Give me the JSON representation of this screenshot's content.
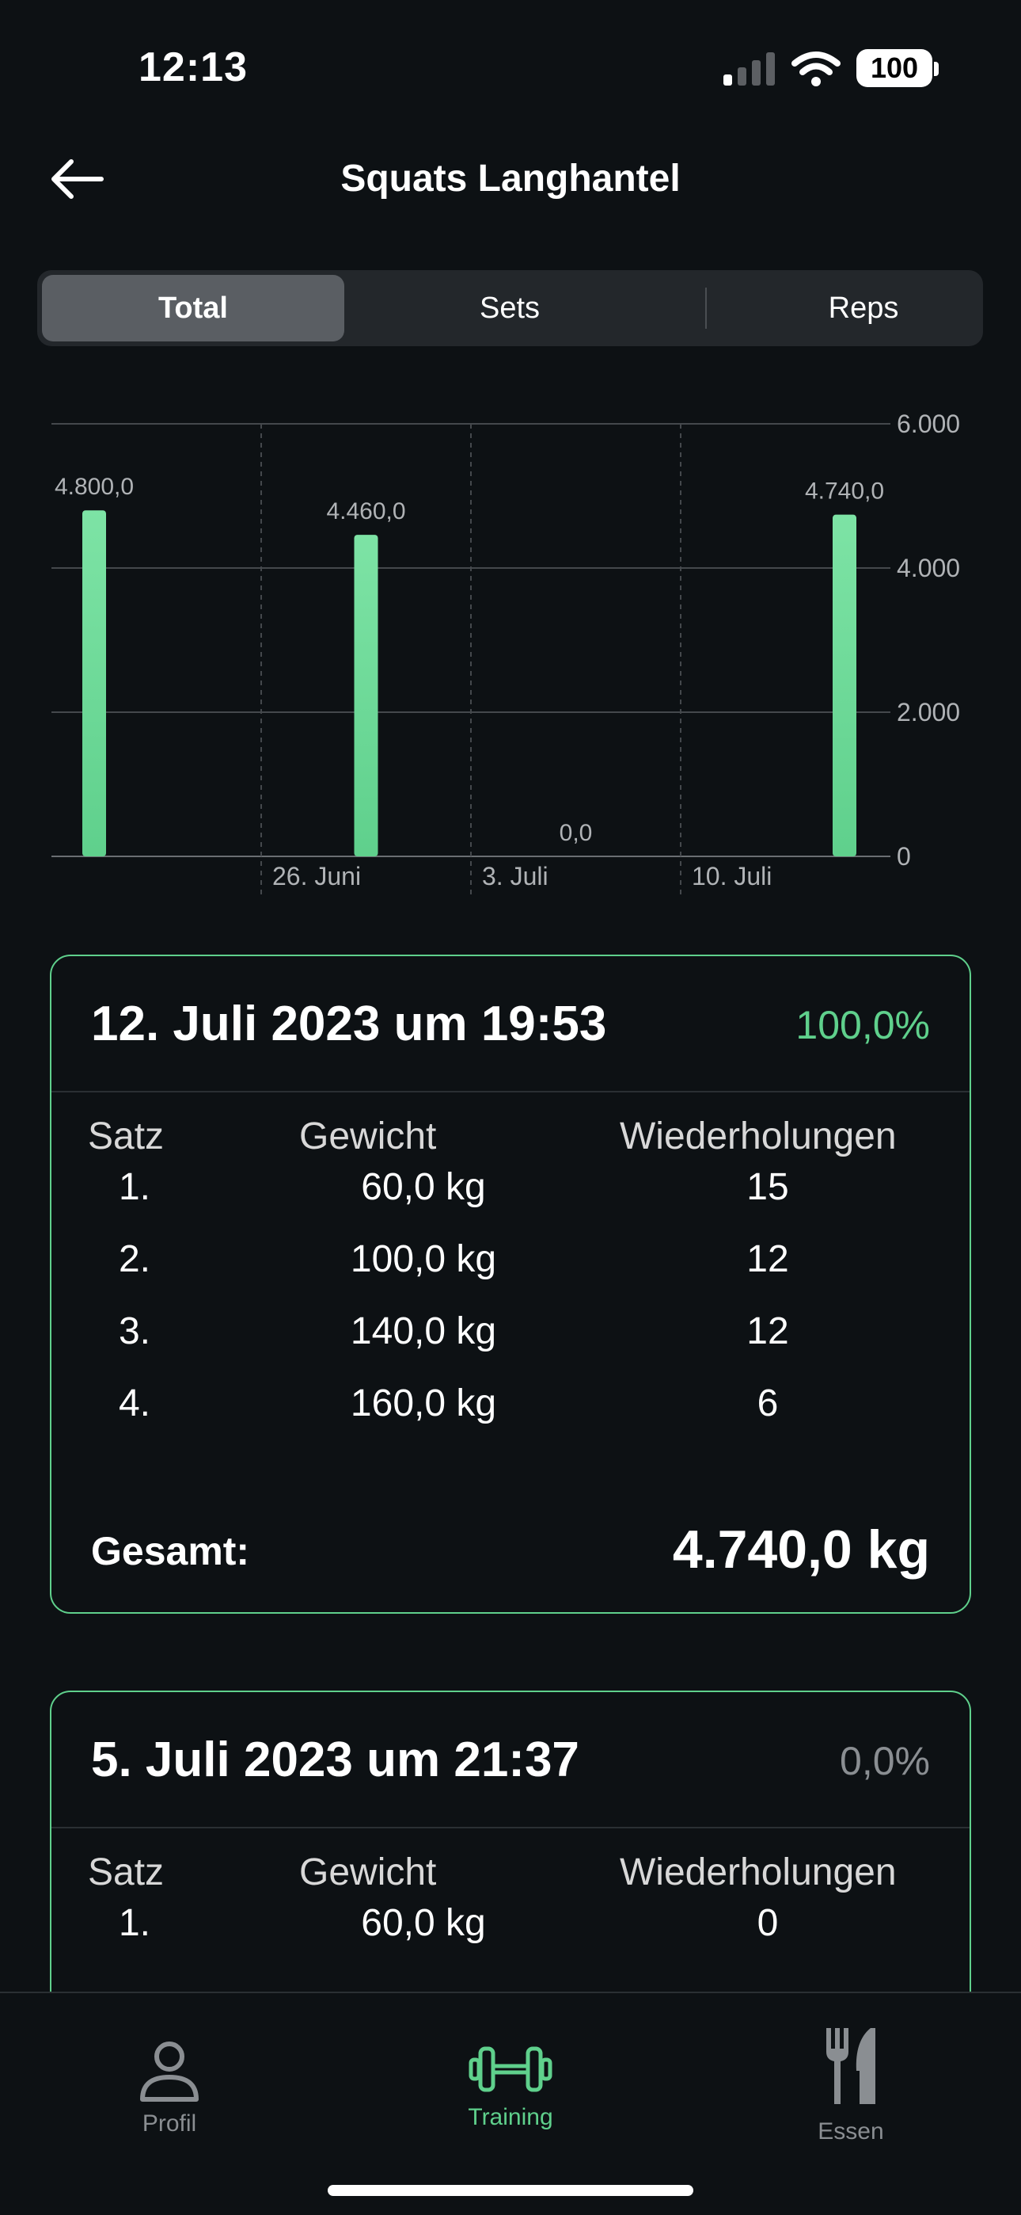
{
  "status_bar": {
    "time": "12:13",
    "battery": "100"
  },
  "header": {
    "title": "Squats Langhantel",
    "back_icon": "arrow-left-icon"
  },
  "segments": [
    {
      "label": "Total",
      "active": true
    },
    {
      "label": "Sets",
      "active": false
    },
    {
      "label": "Reps",
      "active": false
    }
  ],
  "chart_data": {
    "type": "bar",
    "categories": [
      "",
      "26. Juni",
      "3. Juli",
      "10. Juli"
    ],
    "values": [
      4800.0,
      4460.0,
      0.0,
      4740.0
    ],
    "value_labels": [
      "4.800,0",
      "4.460,0",
      "0,0",
      "4.740,0"
    ],
    "y_ticks": [
      "0",
      "2.000",
      "4.000",
      "6.000"
    ],
    "y_tick_values": [
      0,
      2000,
      4000,
      6000
    ],
    "ylim": [
      0,
      6000
    ],
    "grid": true,
    "bar_color": "#5fd08c"
  },
  "cards": [
    {
      "date": "12. Juli 2023 um 19:53",
      "percent": "100,0%",
      "percent_color": "#5fd08c",
      "columns": {
        "satz": "Satz",
        "gewicht": "Gewicht",
        "wdh": "Wiederholungen"
      },
      "rows": [
        {
          "satz": "1.",
          "gewicht": "60,0 kg",
          "wdh": "15"
        },
        {
          "satz": "2.",
          "gewicht": "100,0 kg",
          "wdh": "12"
        },
        {
          "satz": "3.",
          "gewicht": "140,0 kg",
          "wdh": "12"
        },
        {
          "satz": "4.",
          "gewicht": "160,0 kg",
          "wdh": "6"
        }
      ],
      "total_label": "Gesamt:",
      "total_value": "4.740,0 kg"
    },
    {
      "date": "5. Juli 2023 um 21:37",
      "percent": "0,0%",
      "percent_color": "#8a8e92",
      "columns": {
        "satz": "Satz",
        "gewicht": "Gewicht",
        "wdh": "Wiederholungen"
      },
      "rows": [
        {
          "satz": "1.",
          "gewicht": "60,0 kg",
          "wdh": "0"
        }
      ]
    }
  ],
  "tab_bar": [
    {
      "label": "Profil",
      "icon": "person-icon",
      "active": false
    },
    {
      "label": "Training",
      "icon": "dumbbell-icon",
      "active": true
    },
    {
      "label": "Essen",
      "icon": "fork-knife-icon",
      "active": false
    }
  ]
}
